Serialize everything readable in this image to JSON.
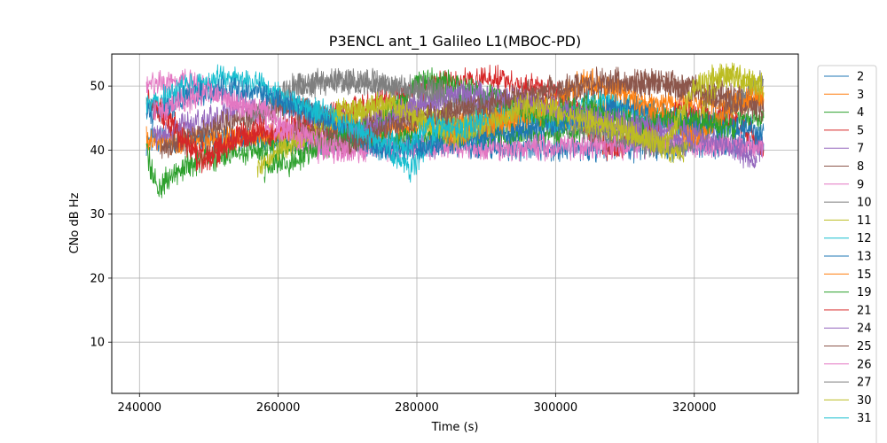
{
  "chart_data": {
    "type": "line",
    "title": "P3ENCL ant_1 Galileo L1(MBOC-PD)",
    "xlabel": "Time (s)",
    "ylabel": "CNo dB Hz",
    "xlim": [
      236000,
      335000
    ],
    "ylim": [
      2,
      55
    ],
    "xticks": [
      240000,
      260000,
      280000,
      300000,
      320000
    ],
    "yticks": [
      10,
      20,
      30,
      40,
      50
    ],
    "grid": true,
    "legend_position": "right-outside",
    "series": [
      {
        "name": "2",
        "color": "#1f77b4",
        "points": [
          [
            241000,
            41.5
          ],
          [
            262000,
            41.5
          ],
          [
            278000,
            40.5
          ],
          [
            300000,
            40
          ],
          [
            320000,
            40.5
          ],
          [
            330000,
            41
          ]
        ]
      },
      {
        "name": "3",
        "color": "#ff7f0e",
        "points": [
          [
            241000,
            42
          ],
          [
            244000,
            41
          ],
          [
            255000,
            42
          ],
          [
            270000,
            43
          ],
          [
            286000,
            44
          ],
          [
            300000,
            46
          ],
          [
            330000,
            48
          ]
        ]
      },
      {
        "name": "4",
        "color": "#2ca02c",
        "points": [
          [
            241000,
            40
          ],
          [
            242500,
            34
          ],
          [
            247000,
            38
          ],
          [
            256000,
            40
          ],
          [
            266000,
            41
          ],
          [
            282000,
            42
          ],
          [
            302000,
            43
          ],
          [
            330000,
            45
          ]
        ]
      },
      {
        "name": "5",
        "color": "#d62728",
        "points": [
          [
            241000,
            48
          ],
          [
            245000,
            44
          ],
          [
            249000,
            39
          ],
          [
            254000,
            42
          ],
          [
            260000,
            43
          ],
          [
            282000,
            50
          ],
          [
            290000,
            51.5
          ],
          [
            300000,
            49
          ],
          [
            308000,
            40
          ],
          [
            318000,
            46
          ],
          [
            326000,
            45
          ],
          [
            330000,
            40
          ]
        ]
      },
      {
        "name": "7",
        "color": "#9467bd",
        "points": [
          [
            242000,
            42
          ],
          [
            250000,
            45
          ],
          [
            260000,
            47
          ],
          [
            272000,
            44
          ],
          [
            284000,
            48
          ],
          [
            296000,
            47
          ],
          [
            310000,
            43
          ],
          [
            322000,
            41
          ],
          [
            330000,
            40
          ]
        ]
      },
      {
        "name": "8",
        "color": "#8c564b",
        "points": [
          [
            243000,
            40
          ],
          [
            252000,
            44
          ],
          [
            262000,
            47
          ],
          [
            270000,
            44
          ],
          [
            290000,
            46
          ],
          [
            304000,
            49
          ],
          [
            314000,
            51
          ],
          [
            324000,
            49
          ],
          [
            330000,
            47
          ]
        ]
      },
      {
        "name": "9",
        "color": "#e377c2",
        "points": [
          [
            241000,
            50
          ],
          [
            246000,
            51
          ],
          [
            251000,
            49
          ],
          [
            256000,
            46
          ],
          [
            260000,
            43
          ],
          [
            266000,
            40
          ],
          [
            300000,
            40.5
          ],
          [
            330000,
            41
          ]
        ]
      },
      {
        "name": "10",
        "color": "#7f7f7f",
        "points": [
          [
            256000,
            45
          ],
          [
            262000,
            50
          ],
          [
            268000,
            51
          ],
          [
            276000,
            50
          ],
          [
            286000,
            48
          ],
          [
            300000,
            44
          ],
          [
            318000,
            40
          ],
          [
            330000,
            51
          ]
        ]
      },
      {
        "name": "11",
        "color": "#bcbd22",
        "points": [
          [
            257000,
            37
          ],
          [
            262000,
            41
          ],
          [
            268000,
            45
          ],
          [
            276000,
            47
          ],
          [
            286000,
            44
          ],
          [
            296000,
            46
          ],
          [
            310000,
            43
          ],
          [
            318000,
            39
          ],
          [
            324000,
            52
          ],
          [
            330000,
            50
          ]
        ]
      },
      {
        "name": "12",
        "color": "#17becf",
        "points": [
          [
            241000,
            47
          ],
          [
            247000,
            50
          ],
          [
            253000,
            51.5
          ],
          [
            258000,
            50
          ],
          [
            262000,
            47
          ],
          [
            268000,
            44
          ],
          [
            274000,
            41
          ],
          [
            279000,
            37
          ],
          [
            284000,
            44
          ],
          [
            288000,
            42
          ],
          [
            294000,
            46
          ],
          [
            300000,
            44
          ],
          [
            306000,
            48
          ],
          [
            312000,
            46
          ],
          [
            318000,
            44
          ]
        ]
      },
      {
        "name": "13",
        "color": "#1f77b4",
        "points": [
          [
            241000,
            45
          ],
          [
            246000,
            48
          ],
          [
            251000,
            49.5
          ],
          [
            257000,
            49
          ],
          [
            262000,
            47
          ],
          [
            268000,
            44
          ],
          [
            276000,
            40
          ],
          [
            300000,
            44
          ],
          [
            310000,
            47
          ],
          [
            320000,
            44
          ],
          [
            330000,
            43
          ]
        ]
      },
      {
        "name": "15",
        "color": "#ff7f0e",
        "points": [
          [
            284000,
            42
          ],
          [
            290000,
            44
          ],
          [
            298000,
            46
          ],
          [
            304000,
            51
          ],
          [
            310000,
            49
          ],
          [
            314000,
            46
          ],
          [
            320000,
            42
          ],
          [
            326000,
            47
          ],
          [
            330000,
            49
          ]
        ]
      },
      {
        "name": "19",
        "color": "#2ca02c",
        "points": [
          [
            258000,
            37
          ],
          [
            262000,
            38
          ],
          [
            268000,
            42
          ],
          [
            274000,
            43
          ],
          [
            280000,
            51
          ],
          [
            286000,
            50
          ],
          [
            292000,
            48
          ],
          [
            298000,
            45
          ],
          [
            304000,
            47
          ],
          [
            312000,
            44
          ],
          [
            320000,
            45
          ],
          [
            326000,
            43
          ]
        ]
      },
      {
        "name": "21",
        "color": "#d62728",
        "points": [
          [
            242000,
            47
          ],
          [
            246000,
            42
          ],
          [
            249000,
            38
          ],
          [
            253000,
            41
          ],
          [
            258000,
            44
          ]
        ]
      },
      {
        "name": "24",
        "color": "#9467bd",
        "points": [
          [
            270000,
            42
          ],
          [
            278000,
            46
          ],
          [
            286000,
            49
          ],
          [
            294000,
            48
          ],
          [
            302000,
            46
          ],
          [
            310000,
            44
          ],
          [
            318000,
            43
          ],
          [
            324000,
            41
          ],
          [
            329000,
            38
          ]
        ]
      },
      {
        "name": "25",
        "color": "#8c564b",
        "points": [
          [
            262000,
            44
          ],
          [
            270000,
            41
          ],
          [
            280000,
            45
          ],
          [
            290000,
            47
          ],
          [
            300000,
            50
          ],
          [
            308000,
            51
          ],
          [
            316000,
            50
          ],
          [
            324000,
            48
          ],
          [
            330000,
            46
          ]
        ]
      },
      {
        "name": "26",
        "color": "#e377c2",
        "points": [
          [
            242000,
            46
          ],
          [
            250000,
            49
          ],
          [
            258000,
            46
          ],
          [
            264000,
            42
          ],
          [
            270000,
            40
          ]
        ]
      },
      {
        "name": "27",
        "color": "#7f7f7f",
        "points": [
          [
            262000,
            50
          ],
          [
            270000,
            51
          ],
          [
            278000,
            50
          ],
          [
            284000,
            49
          ]
        ]
      },
      {
        "name": "30",
        "color": "#bcbd22",
        "points": [
          [
            268000,
            46
          ],
          [
            276000,
            47
          ],
          [
            286000,
            42
          ],
          [
            296000,
            47
          ],
          [
            308000,
            44
          ],
          [
            316000,
            41
          ],
          [
            320000,
            50
          ],
          [
            324000,
            52
          ],
          [
            328000,
            51
          ],
          [
            330000,
            49
          ]
        ]
      },
      {
        "name": "31",
        "color": "#17becf",
        "points": [
          [
            262000,
            48
          ],
          [
            268000,
            45
          ],
          [
            272000,
            43
          ],
          [
            278000,
            40
          ],
          [
            282000,
            44
          ],
          [
            286000,
            43
          ],
          [
            290000,
            45
          ]
        ]
      }
    ]
  }
}
